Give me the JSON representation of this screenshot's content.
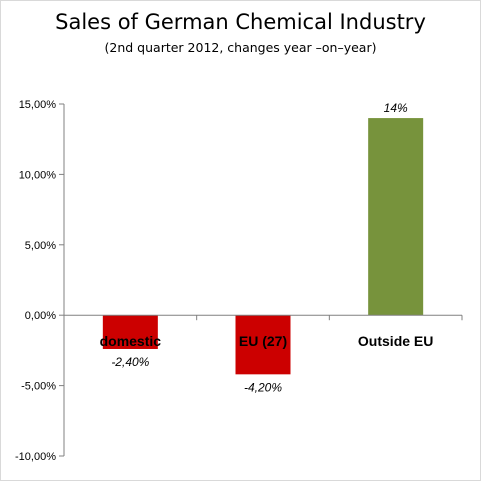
{
  "title": "Sales of German Chemical Industry",
  "subtitle": "(2nd quarter  2012, changes year –on–year)",
  "colors": {
    "negative_bar": "#cc0000",
    "positive_bar": "#77933c",
    "gridline": "#d9d9d9",
    "axis": "#808080"
  },
  "chart_data": {
    "type": "bar",
    "title": "Sales of German Chemical Industry",
    "subtitle": "(2nd quarter  2012, changes year –on–year)",
    "categories": [
      "domestic",
      "EU (27)",
      "Outside EU"
    ],
    "values": [
      -2.4,
      -4.2,
      14.0
    ],
    "data_labels": [
      "-2,40%",
      "-4,20%",
      "14%"
    ],
    "ylim": [
      -10,
      15
    ],
    "yticks": [
      15,
      10,
      5,
      0,
      -5,
      -10
    ],
    "ytick_labels": [
      "15,00%",
      "10,00%",
      "5,00%",
      "0,00%",
      "-5,00%",
      "-10,00%"
    ],
    "xlabel": "",
    "ylabel": "",
    "grid": false,
    "legend": "none"
  }
}
